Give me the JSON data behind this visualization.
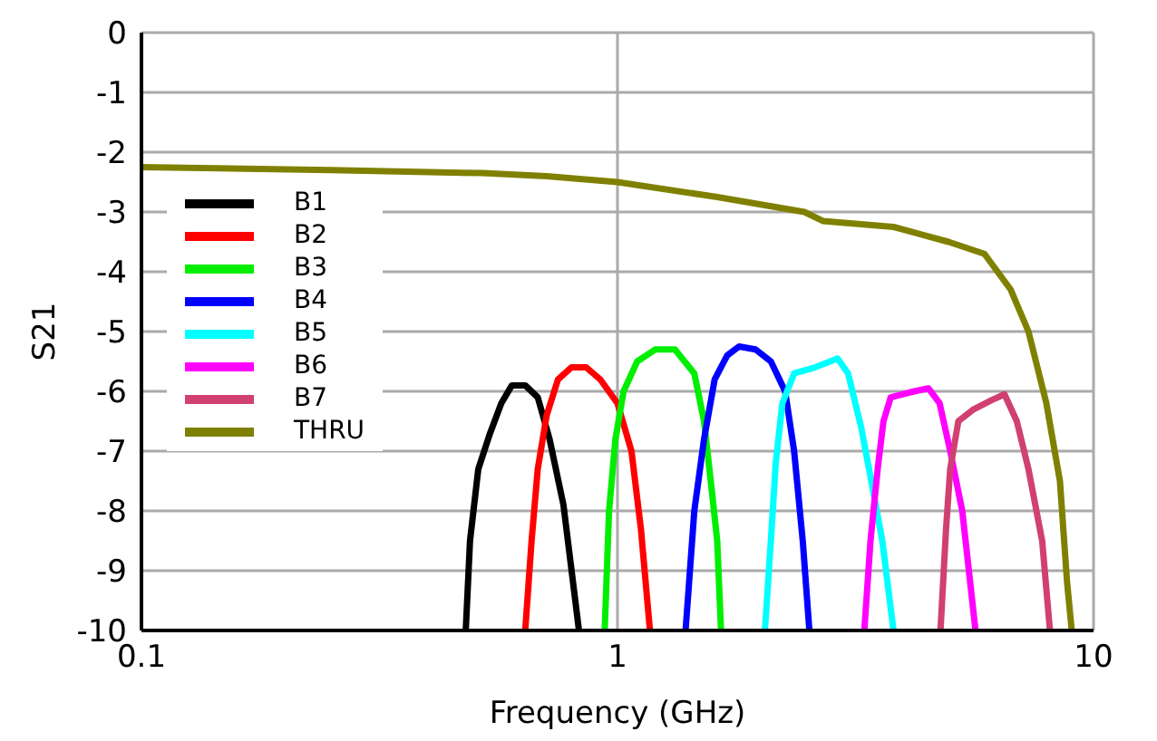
{
  "chart_data": {
    "type": "line",
    "xlabel": "Frequency (GHz)",
    "ylabel": "S21",
    "log": "x",
    "xlim": [
      0.1,
      10
    ],
    "xticks": [
      0.1,
      1,
      10
    ],
    "ylim": [
      -10,
      0
    ],
    "yticks": [
      0,
      -1,
      -2,
      -3,
      -4,
      -5,
      -6,
      -7,
      -8,
      -9,
      -10
    ],
    "grid": true,
    "legend": "top left",
    "marker": "none",
    "line_style": "solid",
    "series": [
      {
        "name": "B1",
        "color": "#000000",
        "x": [
          0.48,
          0.49,
          0.51,
          0.54,
          0.57,
          0.6,
          0.64,
          0.68,
          0.72,
          0.77,
          0.83
        ],
        "values": [
          -10,
          -8.5,
          -7.3,
          -6.7,
          -6.2,
          -5.9,
          -5.9,
          -6.1,
          -6.8,
          -7.9,
          -10
        ]
      },
      {
        "name": "B2",
        "color": "#ff0000",
        "x": [
          0.64,
          0.66,
          0.68,
          0.71,
          0.75,
          0.8,
          0.86,
          0.92,
          1.0,
          1.07,
          1.12,
          1.17
        ],
        "values": [
          -10,
          -8.5,
          -7.3,
          -6.4,
          -5.8,
          -5.6,
          -5.6,
          -5.8,
          -6.2,
          -7,
          -8.3,
          -10
        ]
      },
      {
        "name": "B3",
        "color": "#00ee00",
        "x": [
          0.94,
          0.96,
          0.99,
          1.03,
          1.1,
          1.2,
          1.32,
          1.45,
          1.52,
          1.57,
          1.62,
          1.65
        ],
        "values": [
          -10,
          -8,
          -6.8,
          -6,
          -5.5,
          -5.3,
          -5.3,
          -5.7,
          -6.5,
          -7.5,
          -8.5,
          -10
        ]
      },
      {
        "name": "B4",
        "color": "#0000ff",
        "x": [
          1.39,
          1.45,
          1.52,
          1.6,
          1.7,
          1.8,
          1.95,
          2.1,
          2.25,
          2.35,
          2.45,
          2.53
        ],
        "values": [
          -10,
          -8,
          -6.8,
          -5.8,
          -5.4,
          -5.25,
          -5.3,
          -5.5,
          -6,
          -7,
          -8.5,
          -10
        ]
      },
      {
        "name": "B5",
        "color": "#00ffff",
        "x": [
          2.04,
          2.1,
          2.15,
          2.22,
          2.35,
          2.6,
          2.9,
          3.05,
          3.25,
          3.45,
          3.6,
          3.8
        ],
        "values": [
          -10,
          -8.5,
          -7.2,
          -6.2,
          -5.7,
          -5.6,
          -5.45,
          -5.7,
          -6.6,
          -7.7,
          -8.5,
          -10
        ]
      },
      {
        "name": "B6",
        "color": "#ff00ff",
        "x": [
          3.3,
          3.4,
          3.52,
          3.62,
          3.75,
          4.2,
          4.5,
          4.75,
          5.0,
          5.3,
          5.65
        ],
        "values": [
          -10,
          -8.5,
          -7.3,
          -6.5,
          -6.1,
          -6,
          -5.95,
          -6.2,
          -7,
          -8,
          -10
        ]
      },
      {
        "name": "B7",
        "color": "#d04070",
        "x": [
          4.77,
          4.9,
          5.0,
          5.2,
          5.6,
          6.1,
          6.5,
          6.9,
          7.3,
          7.8,
          8.1
        ],
        "values": [
          -10,
          -8.3,
          -7.3,
          -6.5,
          -6.3,
          -6.15,
          -6.05,
          -6.5,
          -7.3,
          -8.5,
          -10
        ]
      },
      {
        "name": "THRU",
        "color": "#808000",
        "x": [
          0.1,
          0.25,
          0.52,
          0.71,
          1.0,
          1.62,
          2.47,
          2.7,
          3.8,
          4.96,
          5.9,
          6.7,
          7.3,
          7.96,
          8.5,
          8.8,
          9.0
        ],
        "values": [
          -2.25,
          -2.3,
          -2.35,
          -2.4,
          -2.5,
          -2.75,
          -3,
          -3.15,
          -3.25,
          -3.5,
          -3.7,
          -4.3,
          -5,
          -6.2,
          -7.5,
          -9.2,
          -10
        ]
      }
    ]
  }
}
